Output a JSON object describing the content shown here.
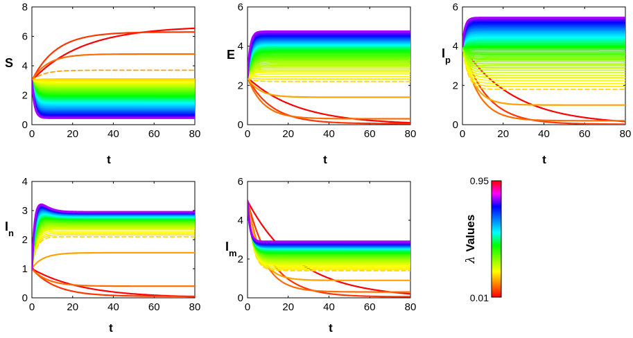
{
  "chart_data": [
    {
      "id": "S",
      "type": "line",
      "ylabel": "S",
      "ylabel_sub": "",
      "xlabel": "t",
      "xlim": [
        0,
        80
      ],
      "ylim": [
        0,
        8
      ],
      "xticks": [
        "0",
        "20",
        "40",
        "60",
        "80"
      ],
      "yticks": [
        "0",
        "2",
        "4",
        "6",
        "8"
      ],
      "initial_value": 3.0,
      "peak": 0,
      "final_values_low_to_high_lambda": [
        6.7,
        6.3,
        4.8,
        3.7,
        3.1,
        2.8,
        2.6,
        2.4,
        2.2,
        2.0,
        1.8,
        1.6,
        1.4,
        1.2,
        1.0,
        0.85,
        0.7,
        0.55,
        0.45
      ],
      "dashed_series_index": 3
    },
    {
      "id": "E",
      "type": "line",
      "ylabel": "E",
      "ylabel_sub": "",
      "xlabel": "t",
      "xlim": [
        0,
        80
      ],
      "ylim": [
        0,
        6
      ],
      "xticks": [
        "0",
        "20",
        "40",
        "60",
        "80"
      ],
      "yticks": [
        "0",
        "2",
        "4",
        "6"
      ],
      "initial_value": 2.4,
      "peak": 0,
      "final_values_low_to_high_lambda": [
        0.0,
        0.05,
        0.3,
        1.4,
        2.2,
        2.7,
        3.0,
        3.3,
        3.5,
        3.7,
        3.85,
        4.0,
        4.1,
        4.2,
        4.3,
        4.4,
        4.5,
        4.6,
        4.75
      ],
      "dashed_series_index": 4
    },
    {
      "id": "Ip",
      "type": "line",
      "ylabel": "I",
      "ylabel_sub": "p",
      "xlabel": "t",
      "xlim": [
        0,
        80
      ],
      "ylim": [
        0,
        6
      ],
      "xticks": [
        "0",
        "20",
        "40",
        "60",
        "80"
      ],
      "yticks": [
        "0",
        "2",
        "4",
        "6"
      ],
      "initial_value": 4.0,
      "peak": 0,
      "final_values_low_to_high_lambda": [
        0.0,
        0.02,
        0.2,
        1.0,
        1.8,
        2.4,
        2.9,
        3.3,
        3.6,
        3.9,
        4.1,
        4.3,
        4.5,
        4.7,
        4.85,
        5.0,
        5.15,
        5.3,
        5.45
      ],
      "dashed_series_index": 4
    },
    {
      "id": "In",
      "type": "line",
      "ylabel": "I",
      "ylabel_sub": "n",
      "xlabel": "t",
      "xlim": [
        0,
        80
      ],
      "ylim": [
        0,
        4
      ],
      "xticks": [
        "0",
        "20",
        "40",
        "60",
        "80"
      ],
      "yticks": [
        "0",
        "1",
        "2",
        "3",
        "4"
      ],
      "initial_value": 1.0,
      "peak": 1,
      "final_values_low_to_high_lambda": [
        0.0,
        0.05,
        0.4,
        1.55,
        2.1,
        2.35,
        2.45,
        2.55,
        2.62,
        2.68,
        2.72,
        2.76,
        2.8,
        2.83,
        2.86,
        2.88,
        2.9,
        2.92,
        2.95
      ],
      "dashed_series_index": 4
    },
    {
      "id": "Im",
      "type": "line",
      "ylabel": "I",
      "ylabel_sub": "m",
      "xlabel": "t",
      "xlim": [
        0,
        80
      ],
      "ylim": [
        0,
        6
      ],
      "xticks": [
        "0",
        "20",
        "40",
        "60",
        "80"
      ],
      "yticks": [
        "0",
        "2",
        "4",
        "6"
      ],
      "initial_value": 5.0,
      "peak": 0,
      "final_values_low_to_high_lambda": [
        0.0,
        0.05,
        0.3,
        0.9,
        1.4,
        1.7,
        1.9,
        2.05,
        2.2,
        2.3,
        2.4,
        2.5,
        2.55,
        2.6,
        2.65,
        2.7,
        2.75,
        2.8,
        2.9
      ],
      "dashed_series_index": 4
    }
  ],
  "colorbar": {
    "label": "λ Values",
    "greek": "λ",
    "label_text": "Values",
    "min_label": "0.01",
    "max_label": "0.95",
    "colors_bottom_to_top": [
      "#ff0000",
      "#ff7f00",
      "#ffff00",
      "#80ff00",
      "#00ff00",
      "#00ffff",
      "#0080ff",
      "#0000ff",
      "#ff00ff",
      "#ff0000"
    ]
  }
}
